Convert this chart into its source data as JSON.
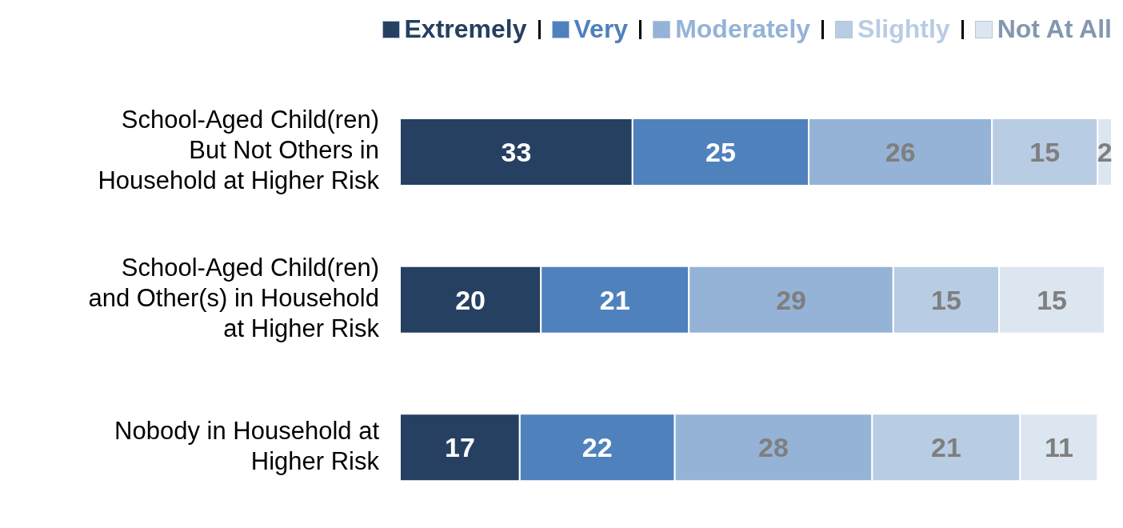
{
  "chart_data": {
    "type": "bar",
    "orientation": "horizontal",
    "stacked": true,
    "data_labels": true,
    "legend": "top right",
    "tick_labels": "y",
    "grid": false,
    "xlim": [
      0,
      101
    ],
    "categories": [
      "School-Aged Child(ren) But Not Others in Household at Higher Risk",
      "School-Aged Child(ren) and Other(s) in Household at Higher Risk",
      "Nobody in Household at Higher Risk"
    ],
    "series": [
      {
        "name": "Extremely",
        "color": "#264061",
        "values": [
          33,
          20,
          17
        ]
      },
      {
        "name": "Very",
        "color": "#4f81bd",
        "values": [
          25,
          21,
          22
        ]
      },
      {
        "name": "Moderately",
        "color": "#95b3d7",
        "values": [
          26,
          29,
          28
        ]
      },
      {
        "name": "Slightly",
        "color": "#b8cce4",
        "values": [
          15,
          15,
          21
        ]
      },
      {
        "name": "Not At All",
        "color": "#dce6f1",
        "values": [
          2,
          15,
          11
        ]
      }
    ]
  }
}
